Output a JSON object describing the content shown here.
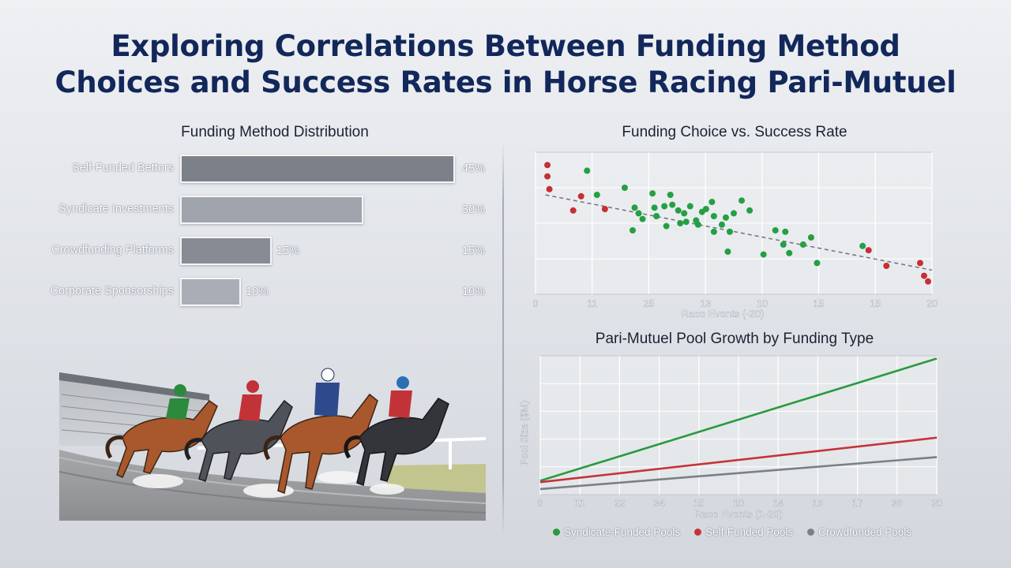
{
  "title": {
    "line1": "Exploring Correlations Between Funding Method",
    "line2": "Choices and Success Rates in Horse Racing Pari-Mutuel"
  },
  "chart_data": [
    {
      "type": "bar",
      "orientation": "horizontal",
      "title": "Funding Method Distribution",
      "categories": [
        "Self-Funded Bettors",
        "Syndicate Investments",
        "Crowdfunding Platforms",
        "Corporate Sponsorships"
      ],
      "values": [
        45,
        30,
        15,
        10
      ],
      "value_labels": [
        "45%",
        "30%",
        "15%",
        "10%"
      ],
      "inline_labels": [
        "",
        "",
        "15%",
        "10%"
      ],
      "colors": [
        "#7b8089",
        "#9fa4ad",
        "#868b94",
        "#a9aeb6"
      ],
      "grid": false
    },
    {
      "type": "scatter",
      "title": "Funding Choice vs. Success Rate",
      "xlabel": "Race Events (-20)",
      "ylabel": "",
      "xlim": [
        0,
        20
      ],
      "ylim": [
        0,
        100
      ],
      "x_tick_labels": [
        "0",
        "11",
        "25",
        "13",
        "10",
        "15",
        "15",
        "20"
      ],
      "grid": true,
      "trendline": {
        "x": [
          0.5,
          20
        ],
        "y": [
          70,
          17
        ],
        "style": "dashed"
      },
      "series": [
        {
          "color": "#c62f35",
          "points": [
            [
              0.6,
              91
            ],
            [
              0.6,
              83
            ],
            [
              0.7,
              74
            ],
            [
              2.3,
              69
            ],
            [
              1.9,
              59
            ],
            [
              3.5,
              60
            ],
            [
              16.8,
              31
            ],
            [
              17.7,
              20
            ],
            [
              19.4,
              22
            ],
            [
              19.6,
              13
            ],
            [
              19.8,
              9
            ]
          ]
        },
        {
          "color": "#23a043",
          "points": [
            [
              2.6,
              87
            ],
            [
              3.1,
              70
            ],
            [
              4.5,
              75
            ],
            [
              5.0,
              61
            ],
            [
              5.2,
              57
            ],
            [
              4.9,
              45
            ],
            [
              5.4,
              53
            ],
            [
              5.9,
              71
            ],
            [
              6.0,
              61
            ],
            [
              6.1,
              55
            ],
            [
              6.5,
              62
            ],
            [
              6.8,
              70
            ],
            [
              6.9,
              63
            ],
            [
              7.2,
              59
            ],
            [
              6.6,
              48
            ],
            [
              7.3,
              50
            ],
            [
              7.6,
              51
            ],
            [
              7.8,
              62
            ],
            [
              7.5,
              57
            ],
            [
              8.1,
              52
            ],
            [
              8.4,
              58
            ],
            [
              8.2,
              49
            ],
            [
              8.6,
              60
            ],
            [
              9.0,
              55
            ],
            [
              9.0,
              44
            ],
            [
              8.9,
              65
            ],
            [
              9.4,
              49
            ],
            [
              9.6,
              54
            ],
            [
              9.8,
              44
            ],
            [
              10.0,
              57
            ],
            [
              10.4,
              66
            ],
            [
              10.8,
              59
            ],
            [
              9.7,
              30
            ],
            [
              11.5,
              28
            ],
            [
              12.1,
              45
            ],
            [
              12.5,
              35
            ],
            [
              12.6,
              44
            ],
            [
              12.8,
              29
            ],
            [
              13.5,
              35
            ],
            [
              13.9,
              40
            ],
            [
              14.2,
              22
            ],
            [
              16.5,
              34
            ]
          ]
        }
      ]
    },
    {
      "type": "line",
      "title": "Pari-Mutuel Pool Growth by Funding Type",
      "xlabel": "Race Events (1-20)",
      "ylabel": "Pool Size ($M)",
      "xlim": [
        0,
        20
      ],
      "ylim": [
        0,
        100
      ],
      "x_tick_labels": [
        "0",
        "11",
        "22",
        "34",
        "15",
        "10",
        "14",
        "16",
        "17",
        "36",
        "20"
      ],
      "grid": true,
      "legend_position": "bottom",
      "series": [
        {
          "name": "Syndicate-Funded Pools",
          "color": "#2a9a3f",
          "x": [
            0,
            20
          ],
          "y": [
            10,
            98
          ]
        },
        {
          "name": "Self-Funded Pools",
          "color": "#c6333a",
          "x": [
            0,
            20
          ],
          "y": [
            9,
            41
          ]
        },
        {
          "name": "Crowdfunded Pools",
          "color": "#7b7f87",
          "x": [
            0,
            20
          ],
          "y": [
            4,
            27
          ]
        }
      ]
    }
  ],
  "illustration": {
    "icon": "horse-racing-illustration"
  },
  "colors": {
    "title": "#12275a",
    "panel_bg": "#d8dce2",
    "green": "#23a043",
    "red": "#c62f35",
    "gray": "#7b7f87"
  }
}
